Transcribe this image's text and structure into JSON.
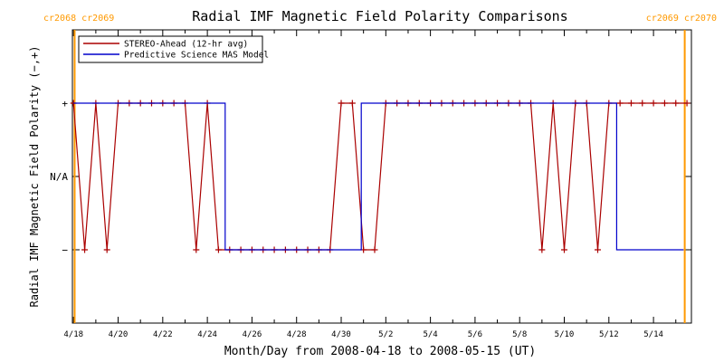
{
  "chart_data": {
    "type": "line",
    "title": "Radial IMF Magnetic Field Polarity Comparisons",
    "xlabel": "Month/Day from 2008-04-18 to 2008-05-15 (UT)",
    "ylabel": "Radial IMF Magnetic Field Polarity (−,+)",
    "xlim": [
      -0.05,
      27.7
    ],
    "ylim": [
      -2.0,
      2.0
    ],
    "x_unit": "days since 2008-04-18 00:00 UT",
    "x_ticks": [
      {
        "x": 0,
        "label": "4/18"
      },
      {
        "x": 2,
        "label": "4/20"
      },
      {
        "x": 4,
        "label": "4/22"
      },
      {
        "x": 6,
        "label": "4/24"
      },
      {
        "x": 8,
        "label": "4/26"
      },
      {
        "x": 10,
        "label": "4/28"
      },
      {
        "x": 12,
        "label": "4/30"
      },
      {
        "x": 14,
        "label": "5/2"
      },
      {
        "x": 16,
        "label": "5/4"
      },
      {
        "x": 18,
        "label": "5/6"
      },
      {
        "x": 20,
        "label": "5/8"
      },
      {
        "x": 22,
        "label": "5/10"
      },
      {
        "x": 24,
        "label": "5/12"
      },
      {
        "x": 26,
        "label": "5/14"
      }
    ],
    "y_ticks": [
      {
        "y": 1,
        "label": "+"
      },
      {
        "y": 0,
        "label": "N/A"
      },
      {
        "y": -1,
        "label": "−"
      }
    ],
    "legend_position": "top-left",
    "rotation_markers": [
      {
        "x": 0.05,
        "label": "cr2068 cr2069",
        "color": "#ff9900",
        "label_side": "left"
      },
      {
        "x": 27.4,
        "label": "cr2069 cr2070",
        "color": "#ff9900",
        "label_side": "right"
      }
    ],
    "series": [
      {
        "name": "STEREO-Ahead (12-hr avg)",
        "color": "#aa0000",
        "marker": "plus",
        "x": [
          0.0,
          0.5,
          1.0,
          1.5,
          2.0,
          2.5,
          3.0,
          3.5,
          4.0,
          4.5,
          5.0,
          5.5,
          6.0,
          6.5,
          7.0,
          7.5,
          8.0,
          8.5,
          9.0,
          9.5,
          10.0,
          10.5,
          11.0,
          11.5,
          12.0,
          12.5,
          13.0,
          13.5,
          14.0,
          14.5,
          15.0,
          15.5,
          16.0,
          16.5,
          17.0,
          17.5,
          18.0,
          18.5,
          19.0,
          19.5,
          20.0,
          20.5,
          21.0,
          21.5,
          22.0,
          22.5,
          23.0,
          23.5,
          24.0,
          24.5,
          25.0,
          25.5,
          26.0,
          26.5,
          27.0,
          27.5
        ],
        "y": [
          1,
          -1,
          1,
          -1,
          1,
          1,
          1,
          1,
          1,
          1,
          1,
          -1,
          1,
          -1,
          -1,
          -1,
          -1,
          -1,
          -1,
          -1,
          -1,
          -1,
          -1,
          -1,
          1,
          1,
          -1,
          -1,
          1,
          1,
          1,
          1,
          1,
          1,
          1,
          1,
          1,
          1,
          1,
          1,
          1,
          1,
          -1,
          1,
          -1,
          1,
          1,
          -1,
          1,
          1,
          1,
          1,
          1,
          1,
          1,
          1
        ]
      },
      {
        "name": "Predictive Science MAS Model",
        "color": "#0000cc",
        "marker": "none",
        "step": true,
        "x": [
          0.0,
          6.8,
          6.8,
          12.9,
          12.9,
          24.35,
          24.35,
          27.35
        ],
        "y": [
          1,
          1,
          -1,
          -1,
          1,
          1,
          -1,
          -1
        ]
      }
    ]
  }
}
